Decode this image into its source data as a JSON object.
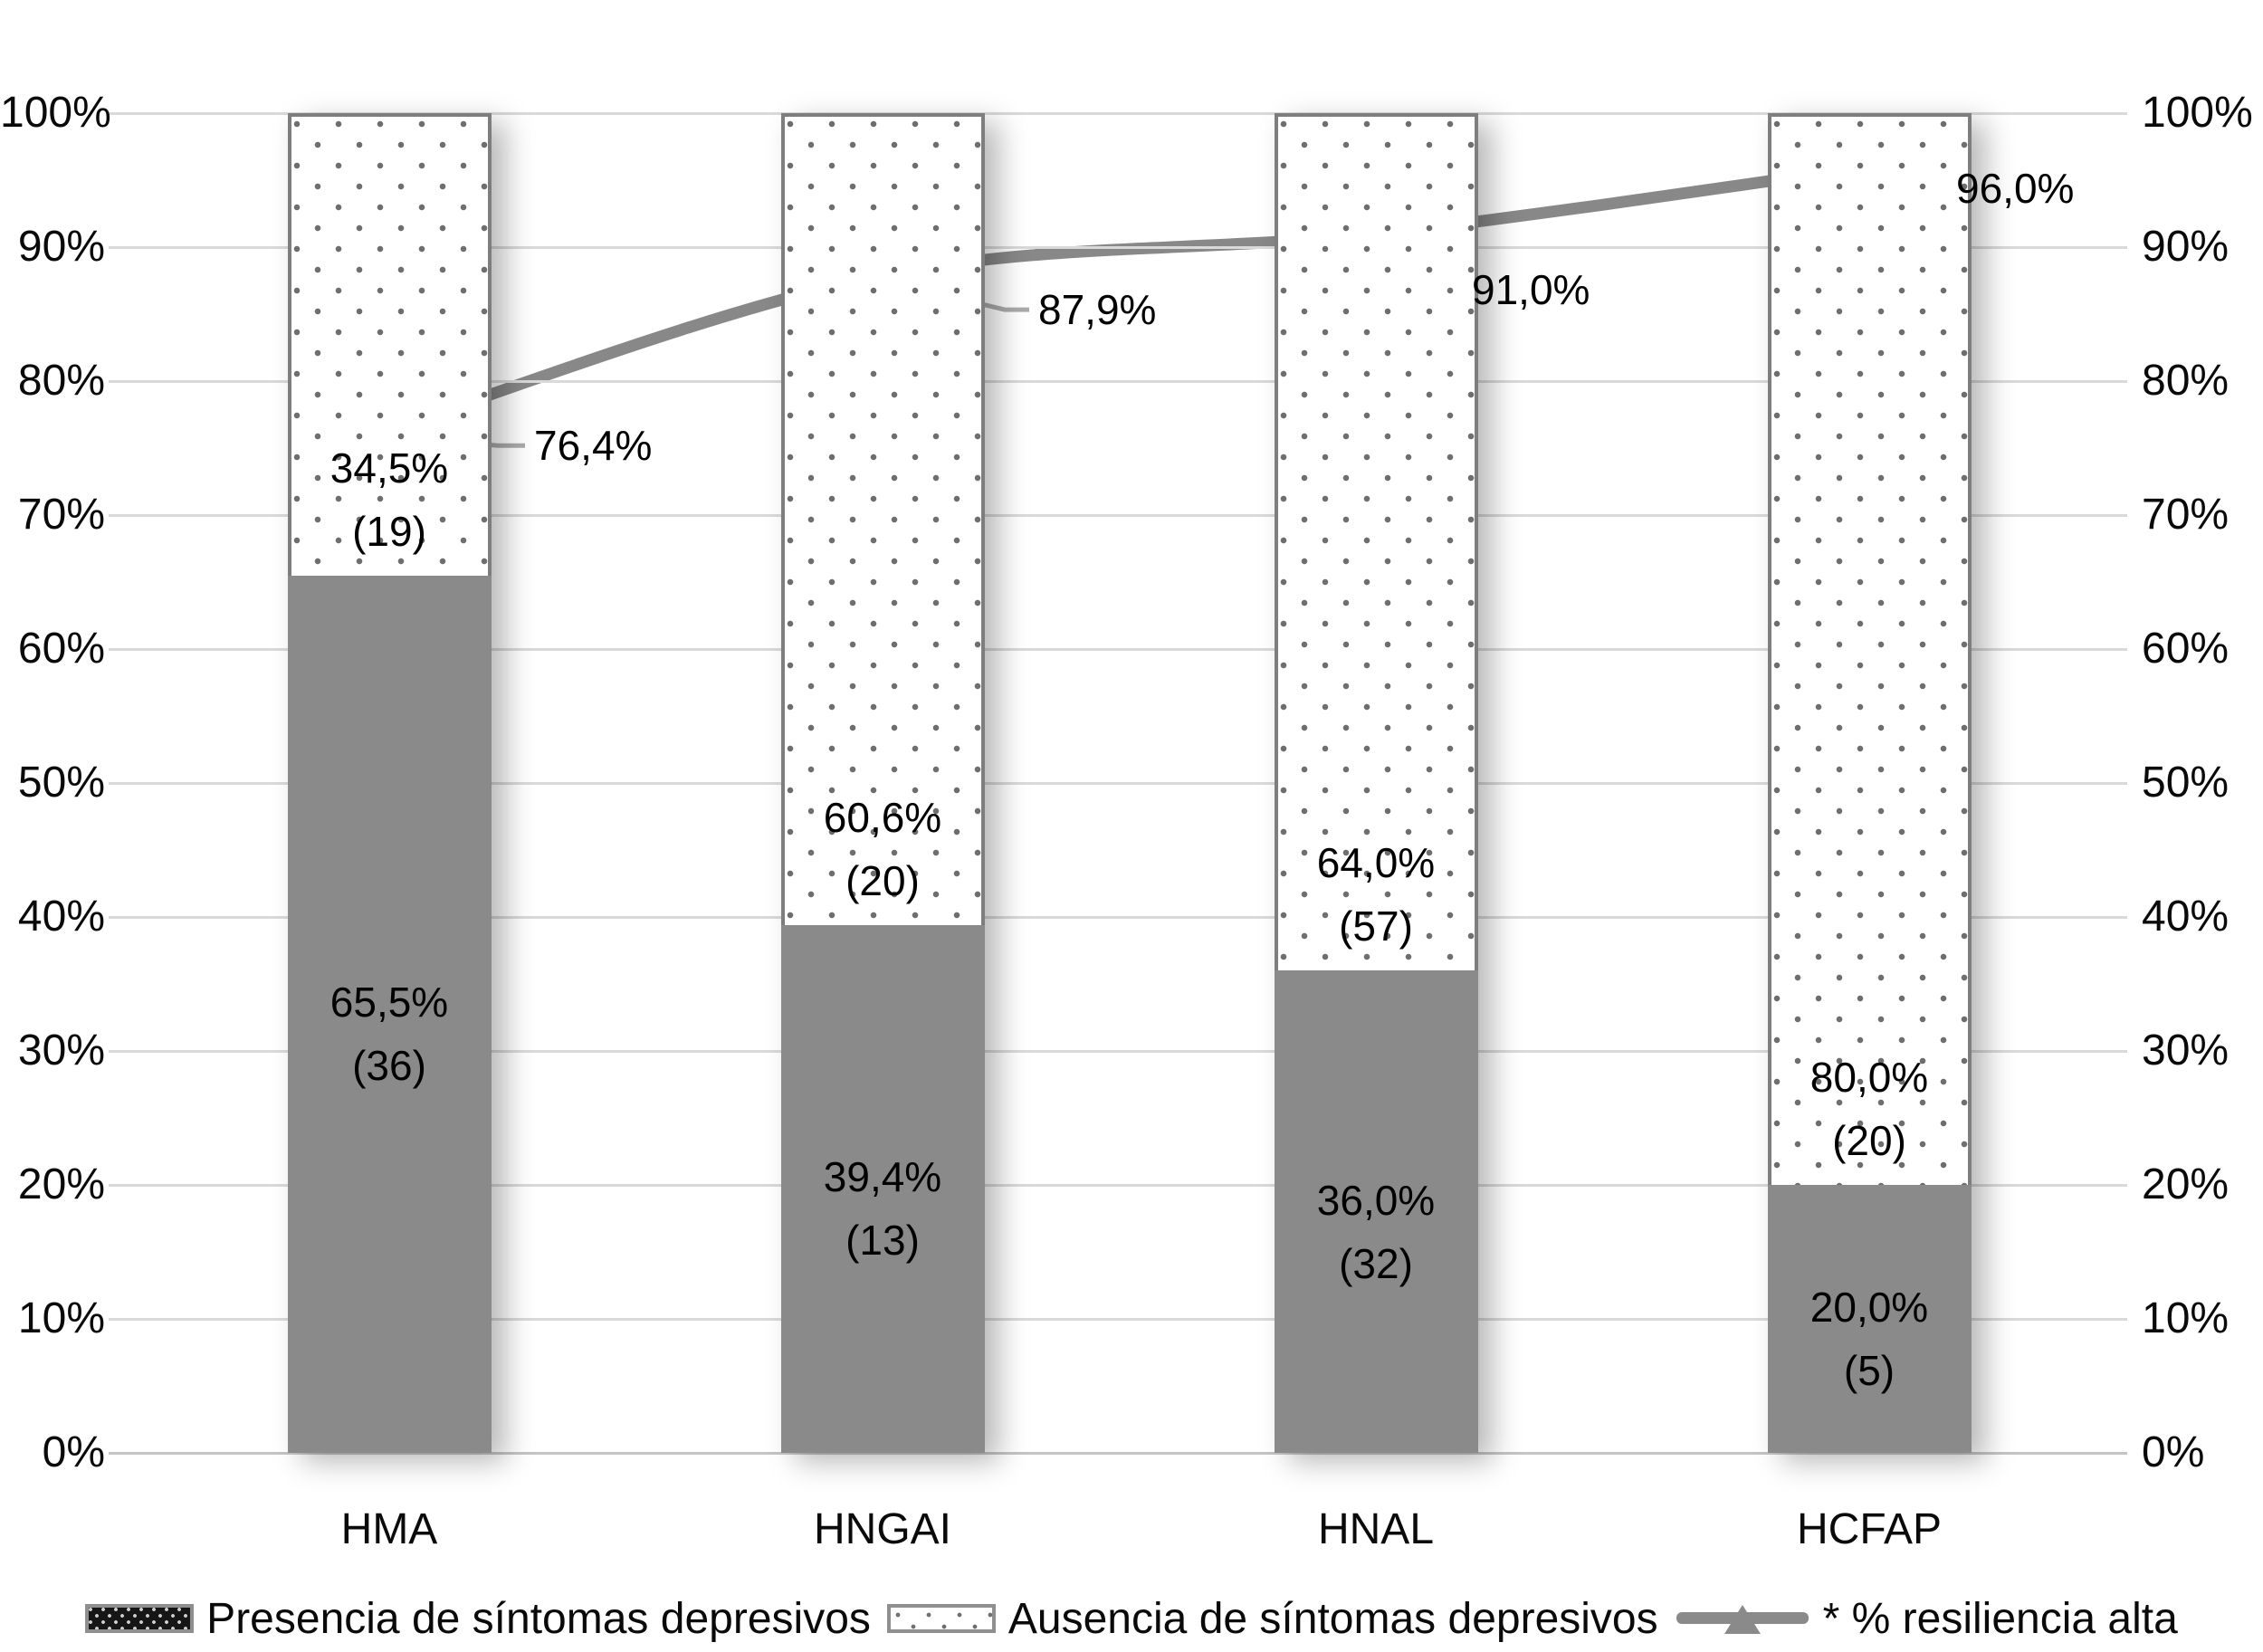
{
  "chart_data": {
    "type": "bar",
    "variant": "100%-stacked-columns-with-line-overlay",
    "title": "",
    "categories": [
      "HMA",
      "HNGAI",
      "HNAL",
      "HCFAP"
    ],
    "bar_series": [
      {
        "name": "Presencia de síntomas depresivos",
        "style": "solid-gray",
        "values": [
          65.5,
          39.4,
          36.0,
          20.0
        ],
        "value_labels": [
          "65,5%",
          "39,4%",
          "36,0%",
          "20,0%"
        ],
        "count_labels": [
          "(36)",
          "(13)",
          "(32)",
          "(5)"
        ]
      },
      {
        "name": "Ausencia de síntomas depresivos",
        "style": "white-with-dots",
        "values": [
          34.5,
          60.6,
          64.0,
          80.0
        ],
        "value_labels": [
          "34,5%",
          "60,6%",
          "64,0%",
          "80,0%"
        ],
        "count_labels": [
          "(19)",
          "(20)",
          "(57)",
          "(20)"
        ]
      }
    ],
    "line_series": {
      "name": "* % resiliencia alta",
      "values": [
        76.4,
        87.9,
        91.0,
        96.0
      ],
      "point_labels": [
        "76,4%",
        "87,9%",
        "91,0%",
        "96,0%"
      ],
      "marker": "triangle-up"
    },
    "y_axis_left": {
      "min": 0,
      "max": 100,
      "step": 10,
      "tick_labels": [
        "0%",
        "10%",
        "20%",
        "30%",
        "40%",
        "50%",
        "60%",
        "70%",
        "80%",
        "90%",
        "100%"
      ]
    },
    "y_axis_right": {
      "min": 0,
      "max": 100,
      "step": 10,
      "tick_labels": [
        "0%",
        "10%",
        "20%",
        "30%",
        "40%",
        "50%",
        "60%",
        "70%",
        "80%",
        "90%",
        "100%"
      ]
    },
    "grid": true,
    "legend_position": "bottom"
  },
  "legend": {
    "items": [
      {
        "swatch": "dark-dotted-rect",
        "label": "Presencia de síntomas depresivos"
      },
      {
        "swatch": "light-dotted-rect",
        "label": "Ausencia de síntomas depresivos"
      },
      {
        "swatch": "line-triangle-marker",
        "label": "* % resiliencia alta"
      }
    ]
  },
  "colors": {
    "bar_solid": "#8a8a8a",
    "bar_dot": "#6e6e6e",
    "bar_border": "#7e7e7e",
    "line": "#888888",
    "leader": "#ababab",
    "gridline": "#d9d9d9",
    "text": "#000000",
    "background": "#ffffff"
  }
}
